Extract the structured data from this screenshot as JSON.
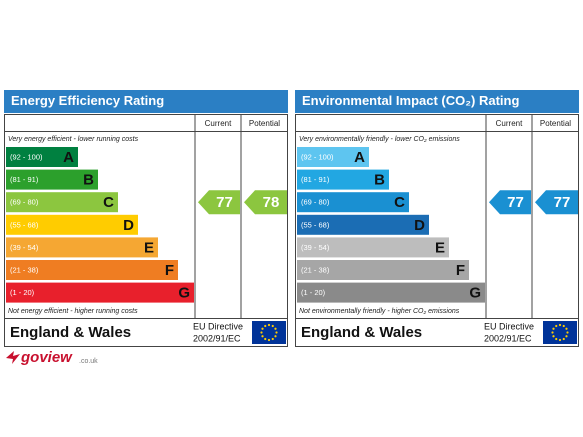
{
  "panels": [
    {
      "title": "Energy Efficiency Rating",
      "headers": [
        "Current",
        "Potential"
      ],
      "top_note": "Very energy efficient - lower running costs",
      "bottom_note": "Not energy efficient - higher running costs",
      "bands": [
        {
          "range": "(92 - 100)",
          "letter": "A",
          "color": "#008040"
        },
        {
          "range": "(81 - 91)",
          "letter": "B",
          "color": "#2ca02c"
        },
        {
          "range": "(69 - 80)",
          "letter": "C",
          "color": "#8cc63f"
        },
        {
          "range": "(55 - 68)",
          "letter": "D",
          "color": "#ffcc00"
        },
        {
          "range": "(39 - 54)",
          "letter": "E",
          "color": "#f5a733"
        },
        {
          "range": "(21 - 38)",
          "letter": "F",
          "color": "#ef7d22"
        },
        {
          "range": "(1 - 20)",
          "letter": "G",
          "color": "#e8202c"
        }
      ],
      "current": 77,
      "potential": 78,
      "region": "England & Wales",
      "directive": [
        "EU Directive",
        "2002/91/EC"
      ]
    },
    {
      "title": "Environmental Impact (CO₂) Rating",
      "headers": [
        "Current",
        "Potential"
      ],
      "top_note": "Very environmentally friendly - lower CO₂ emissions",
      "bottom_note": "Not environmentally friendly - higher CO₂ emissions",
      "bands": [
        {
          "range": "(92 - 100)",
          "letter": "A",
          "color": "#5ec5f0"
        },
        {
          "range": "(81 - 91)",
          "letter": "B",
          "color": "#22a7e2"
        },
        {
          "range": "(69 - 80)",
          "letter": "C",
          "color": "#1a90d2"
        },
        {
          "range": "(55 - 68)",
          "letter": "D",
          "color": "#1b6db4"
        },
        {
          "range": "(39 - 54)",
          "letter": "E",
          "color": "#bdbdbd"
        },
        {
          "range": "(21 - 38)",
          "letter": "F",
          "color": "#a6a6a6"
        },
        {
          "range": "(1 - 20)",
          "letter": "G",
          "color": "#8a8a8a"
        }
      ],
      "current": 77,
      "potential": 77,
      "region": "England & Wales",
      "directive": [
        "EU Directive",
        "2002/91/EC"
      ]
    }
  ],
  "logo": {
    "brand": "goview",
    "domain": ".co.uk"
  }
}
